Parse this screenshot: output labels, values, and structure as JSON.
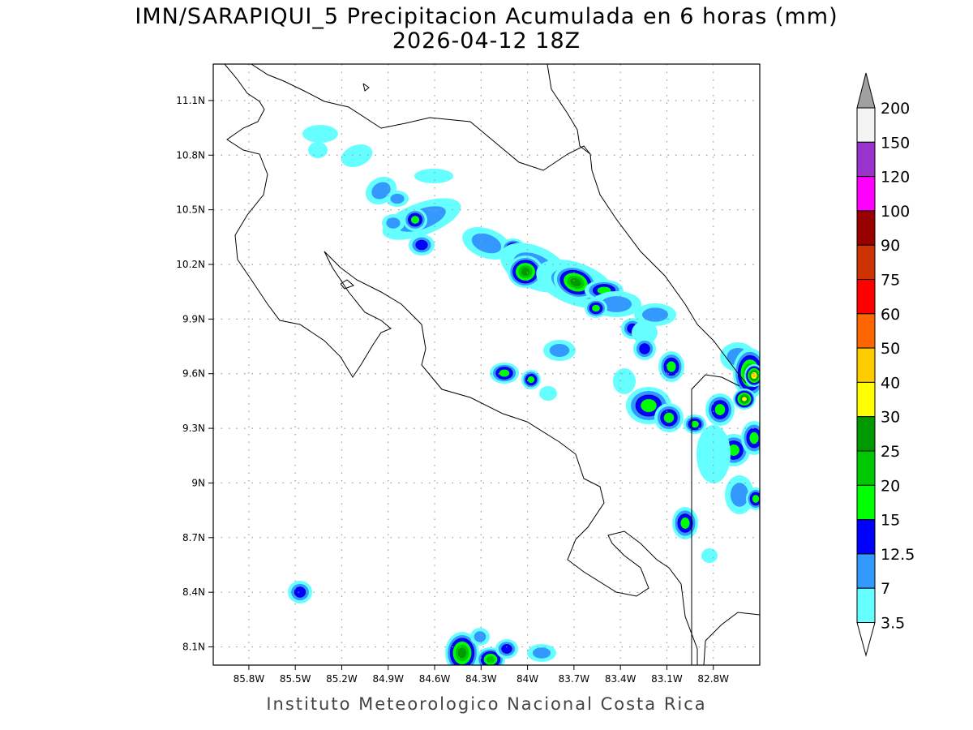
{
  "title": "IMN/SARAPIQUI_5 Precipitacion Acumulada en 6 horas (mm)",
  "subtitle": "2026-04-12 18Z",
  "footer": "Instituto Meteorologico Nacional Costa Rica",
  "chart_data": {
    "type": "heatmap",
    "map_region": "Costa Rica",
    "lon_range": [
      -86.03,
      -82.5
    ],
    "lat_range": [
      8.0,
      11.3
    ],
    "grid": true,
    "x_ticks": [
      "85.8W",
      "85.5W",
      "85.2W",
      "84.9W",
      "84.6W",
      "84.3W",
      "84W",
      "83.7W",
      "83.4W",
      "83.1W",
      "82.8W"
    ],
    "x_tick_values": [
      -85.8,
      -85.5,
      -85.2,
      -84.9,
      -84.6,
      -84.3,
      -84.0,
      -83.7,
      -83.4,
      -83.1,
      -82.8
    ],
    "y_ticks": [
      "11.1N",
      "10.8N",
      "10.5N",
      "10.2N",
      "9.9N",
      "9.6N",
      "9.3N",
      "9N",
      "8.7N",
      "8.4N",
      "8.1N"
    ],
    "y_tick_values": [
      11.1,
      10.8,
      10.5,
      10.2,
      9.9,
      9.6,
      9.3,
      9.0,
      8.7,
      8.4,
      8.1
    ],
    "colorbar": {
      "labels": [
        "200",
        "150",
        "120",
        "100",
        "90",
        "75",
        "60",
        "50",
        "40",
        "30",
        "25",
        "20",
        "15",
        "12.5",
        "7",
        "3.5"
      ],
      "colors": [
        "#f4f4f4",
        "#9933cc",
        "#ff00ff",
        "#990000",
        "#cc3300",
        "#ff0000",
        "#ff6600",
        "#ffcc00",
        "#ffff00",
        "#009900",
        "#00c800",
        "#00ff00",
        "#0000ff",
        "#3399ff",
        "#66ffff"
      ],
      "over_color": "#a0a0a0",
      "under_color": "#ffffff"
    }
  }
}
